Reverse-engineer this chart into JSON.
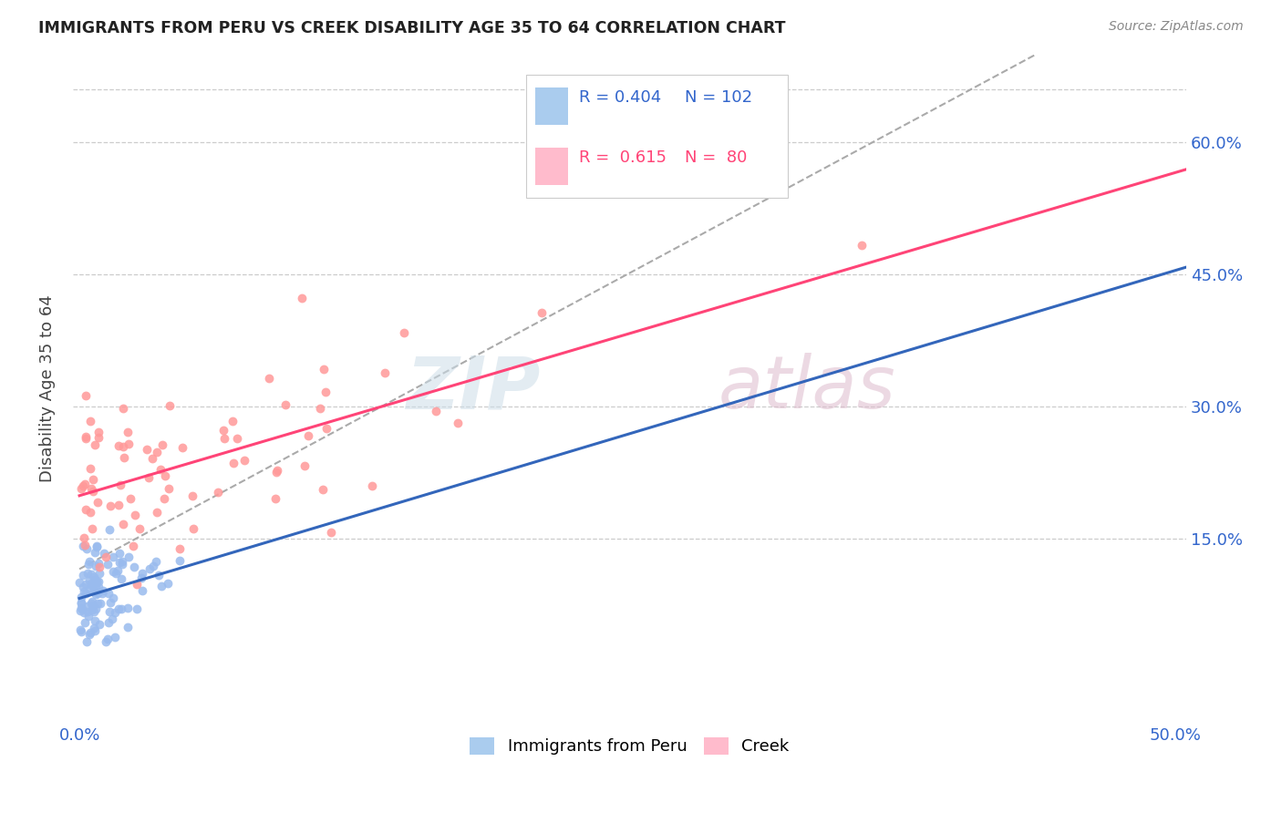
{
  "title": "IMMIGRANTS FROM PERU VS CREEK DISABILITY AGE 35 TO 64 CORRELATION CHART",
  "source": "Source: ZipAtlas.com",
  "ylabel": "Disability Age 35 to 64",
  "ytick_vals": [
    0.15,
    0.3,
    0.45,
    0.6
  ],
  "ytick_labels": [
    "15.0%",
    "30.0%",
    "45.0%",
    "60.0%"
  ],
  "xlim": [
    -0.003,
    0.505
  ],
  "ylim": [
    -0.06,
    0.7
  ],
  "xtick_vals": [
    0.0,
    0.5
  ],
  "xtick_labels": [
    "0.0%",
    "50.0%"
  ],
  "color_blue_scatter": "#99BBEE",
  "color_pink_scatter": "#FF9999",
  "color_blue_line": "#3366BB",
  "color_pink_line": "#FF4477",
  "color_dashed_line": "#AAAAAA",
  "color_text": "#3366CC",
  "watermark_color_zip": "#CCDDEE",
  "watermark_color_atlas": "#DDBBCC",
  "legend_r1": "R = 0.404",
  "legend_n1": "N = 102",
  "legend_r2": "R =  0.615",
  "legend_n2": "N =  80"
}
